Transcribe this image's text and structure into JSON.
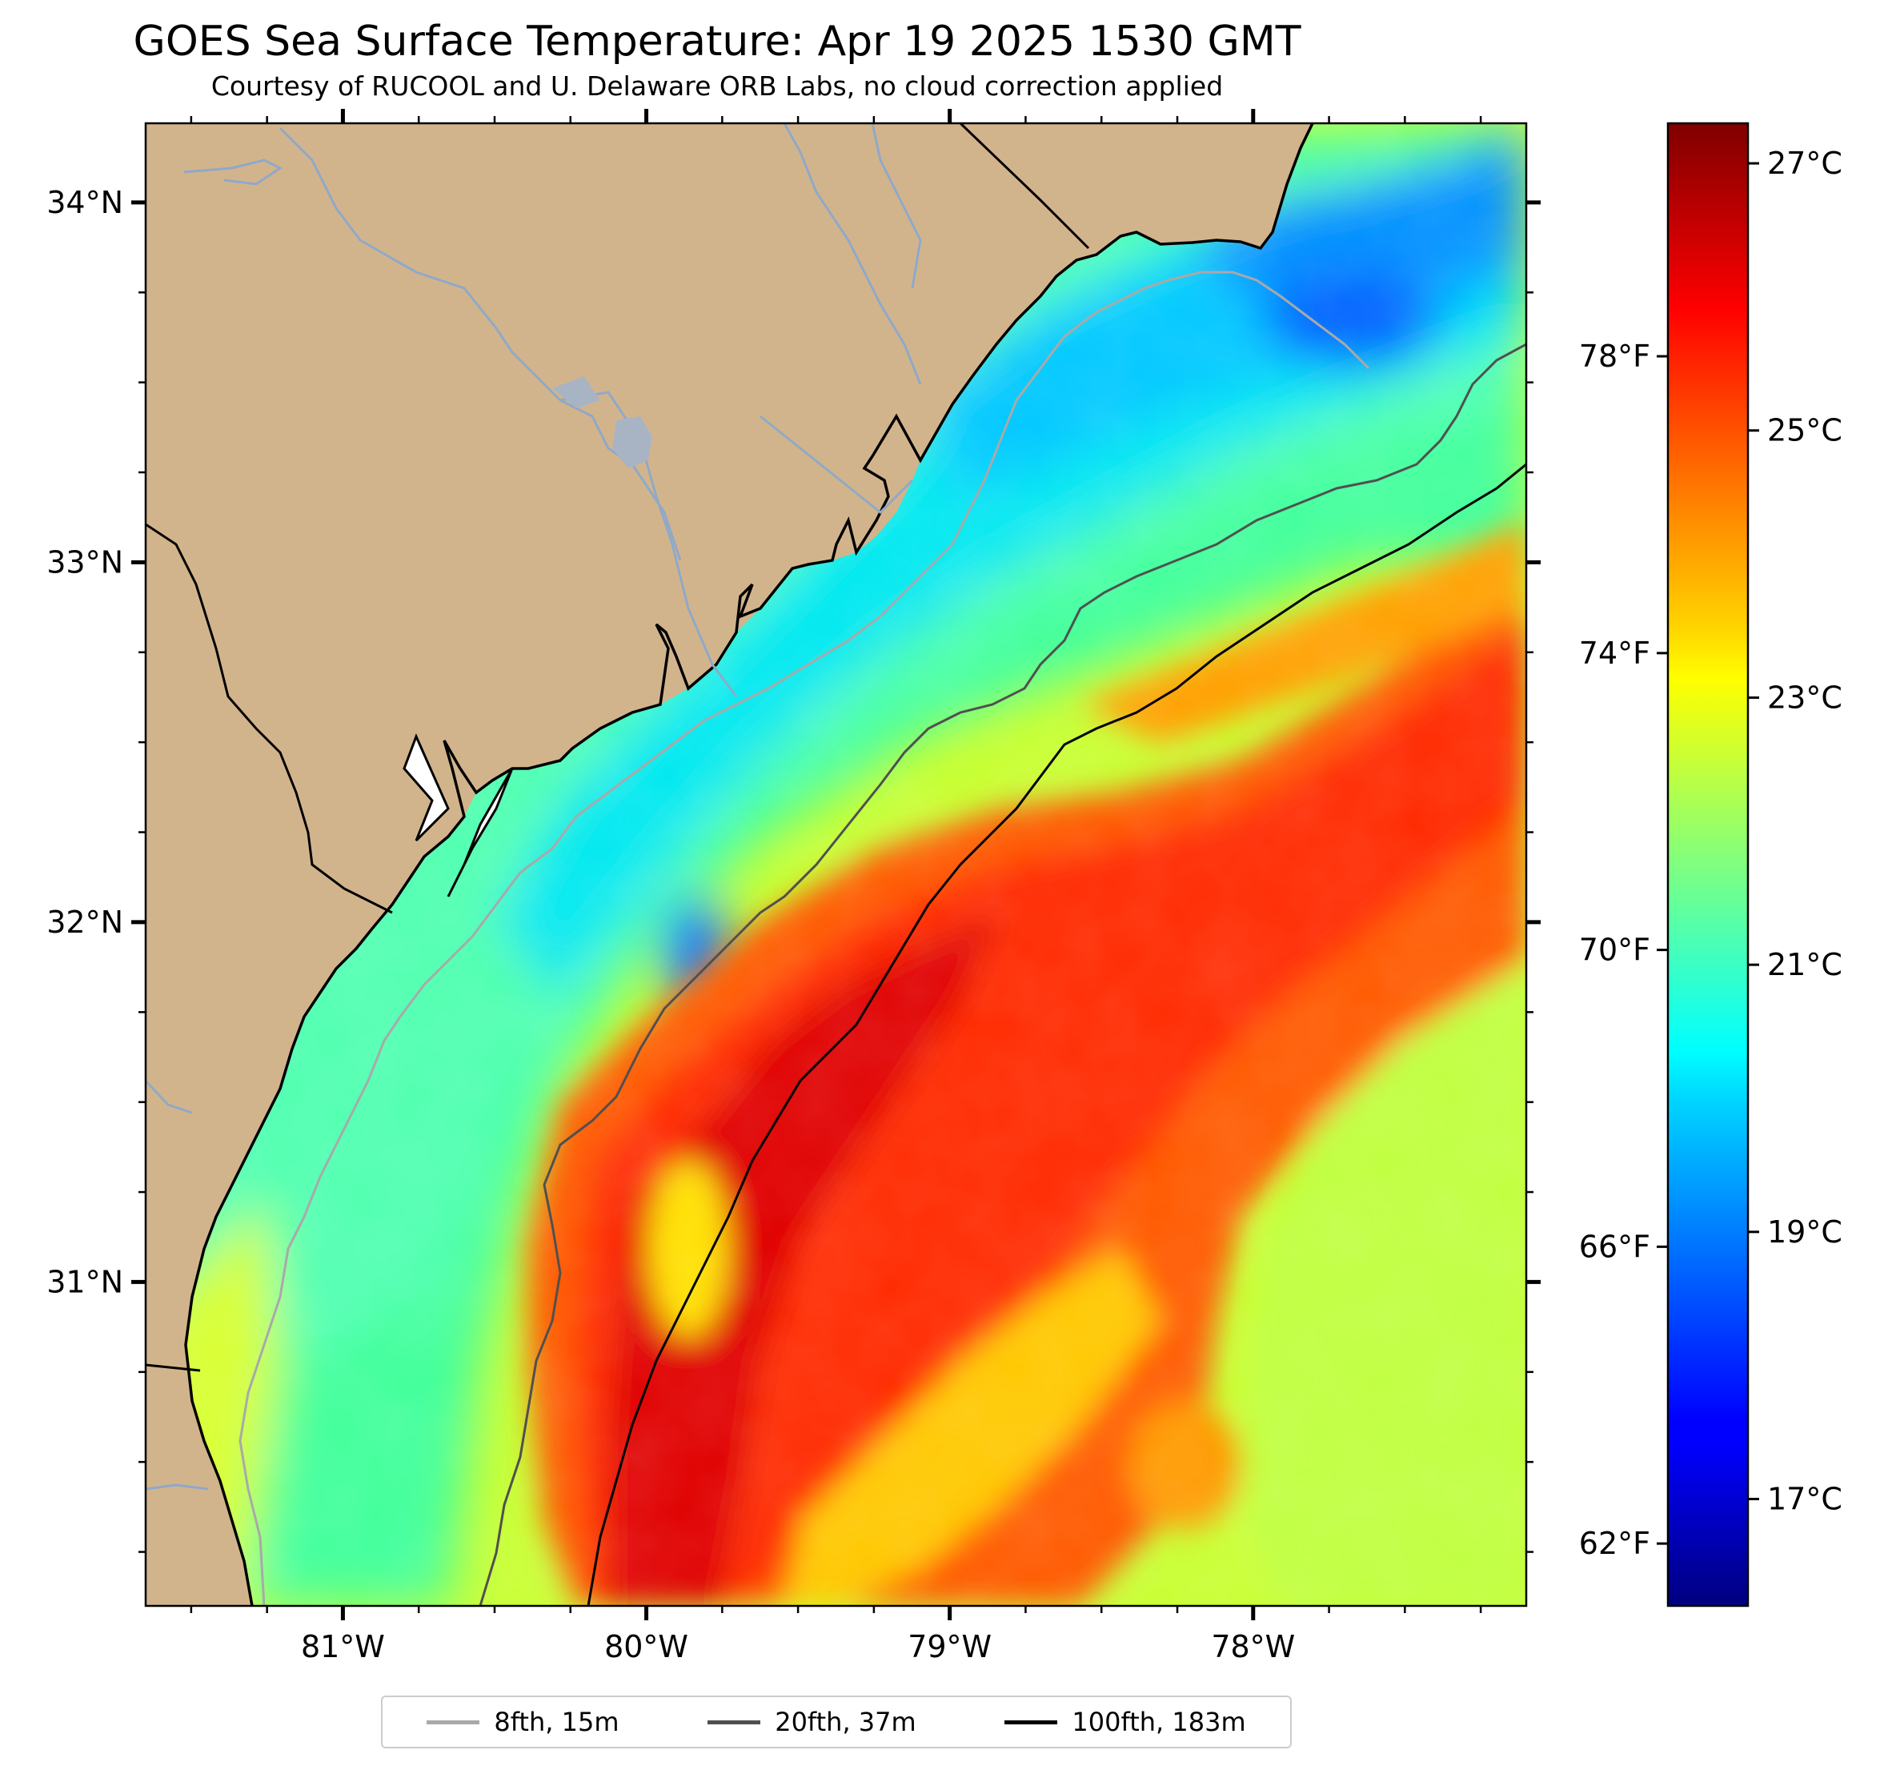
{
  "title": "GOES Sea Surface Temperature: Apr 19 2025 1530 GMT",
  "subtitle": "Courtesy of RUCOOL and U. Delaware ORB Labs, no cloud correction applied",
  "map": {
    "lon_range": [
      -81.65,
      -77.1
    ],
    "lat_range": [
      30.1,
      34.22
    ],
    "lon_ticks": [
      {
        "value": -81,
        "label": "81°W"
      },
      {
        "value": -80,
        "label": "80°W"
      },
      {
        "value": -79,
        "label": "79°W"
      },
      {
        "value": -78,
        "label": "78°W"
      }
    ],
    "lat_ticks": [
      {
        "value": 34,
        "label": "34°N"
      },
      {
        "value": 33,
        "label": "33°N"
      },
      {
        "value": 32,
        "label": "32°N"
      },
      {
        "value": 31,
        "label": "31°N"
      }
    ],
    "land_color": "#d2b48c",
    "river_color": "#8fa9c8"
  },
  "colorbar": {
    "min_c": 16.2,
    "max_c": 27.3,
    "celsius_ticks": [
      {
        "value": 17,
        "label": "17°C"
      },
      {
        "value": 19,
        "label": "19°C"
      },
      {
        "value": 21,
        "label": "21°C"
      },
      {
        "value": 23,
        "label": "23°C"
      },
      {
        "value": 25,
        "label": "25°C"
      },
      {
        "value": 27,
        "label": "27°C"
      }
    ],
    "fahrenheit_ticks": [
      {
        "value": 62,
        "label": "62°F"
      },
      {
        "value": 66,
        "label": "66°F"
      },
      {
        "value": 70,
        "label": "70°F"
      },
      {
        "value": 74,
        "label": "74°F"
      },
      {
        "value": 78,
        "label": "78°F"
      }
    ],
    "colormap": "jet"
  },
  "legend": [
    {
      "label": "8fth, 15m",
      "color": "#a9a9a9"
    },
    {
      "label": "20fth, 37m",
      "color": "#505050"
    },
    {
      "label": "100fth, 183m",
      "color": "#000000"
    }
  ]
}
